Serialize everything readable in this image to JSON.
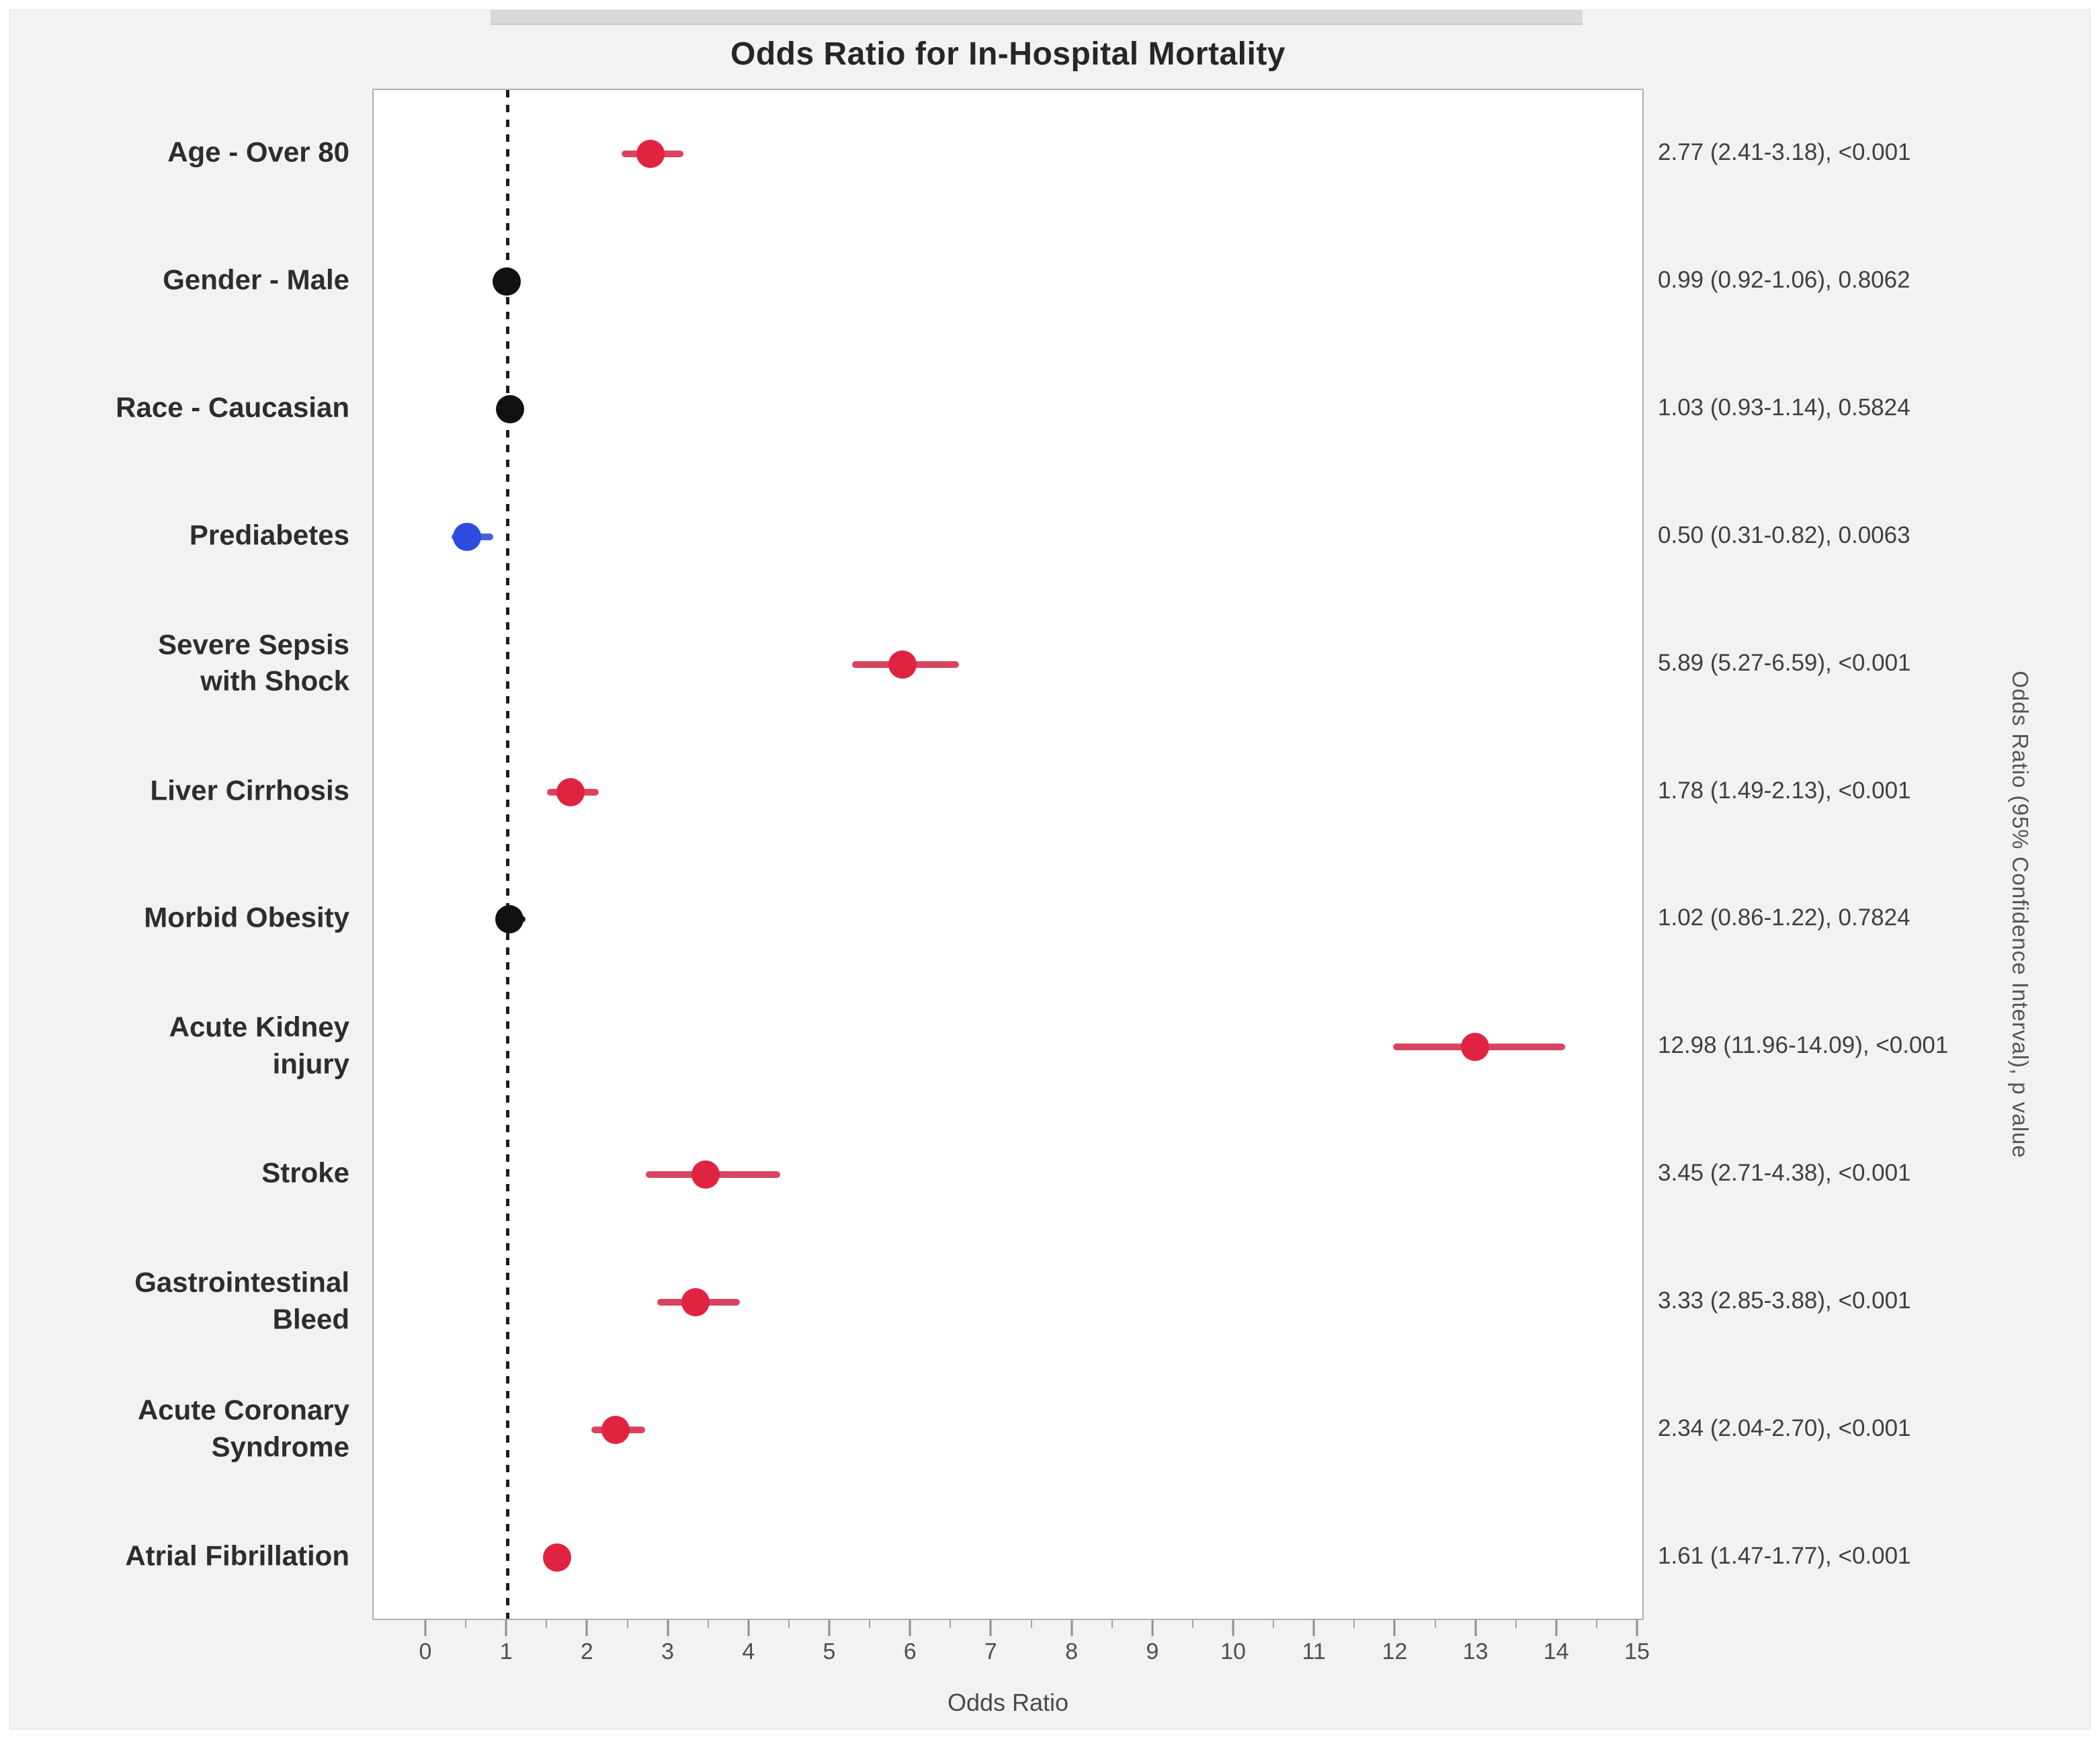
{
  "figure": {
    "title": "Odds Ratio for In-Hospital Mortality",
    "x_axis_label": "Odds Ratio",
    "right_axis_label": "Odds Ratio (95% Confidence Interval), p value"
  },
  "chart_data": {
    "type": "scatter",
    "subtype": "forest-plot",
    "title": "Odds Ratio for In-Hospital Mortality",
    "xlabel": "Odds Ratio",
    "right_label": "Odds Ratio (95% Confidence Interval), p value",
    "xlim": [
      0,
      15
    ],
    "x_major_ticks": [
      0,
      1,
      2,
      3,
      4,
      5,
      6,
      7,
      8,
      9,
      10,
      11,
      12,
      13,
      14,
      15
    ],
    "x_minor_tick_step": 0.5,
    "reference_line_x": 1,
    "grid": false,
    "legend": "none",
    "colors": {
      "red": "#e02340",
      "red_line": "#d8445e",
      "blue": "#2b4cdf",
      "blue_line": "#4661d8",
      "black": "#111111",
      "black_line": "#111111"
    },
    "rows": [
      {
        "label": "Age - Over 80",
        "or": 2.77,
        "ci_low": 2.41,
        "ci_high": 3.18,
        "p": "<0.001",
        "color": "red",
        "annotation": "2.77 (2.41-3.18), <0.001"
      },
      {
        "label": "Gender - Male",
        "or": 0.99,
        "ci_low": 0.92,
        "ci_high": 1.06,
        "p": "0.8062",
        "color": "black",
        "annotation": "0.99 (0.92-1.06), 0.8062"
      },
      {
        "label": "Race - Caucasian",
        "or": 1.03,
        "ci_low": 0.93,
        "ci_high": 1.14,
        "p": "0.5824",
        "color": "black",
        "annotation": "1.03 (0.93-1.14), 0.5824"
      },
      {
        "label": "Prediabetes",
        "or": 0.5,
        "ci_low": 0.31,
        "ci_high": 0.82,
        "p": "0.0063",
        "color": "blue",
        "annotation": "0.50 (0.31-0.82), 0.0063"
      },
      {
        "label": "Severe Sepsis\nwith Shock",
        "or": 5.89,
        "ci_low": 5.27,
        "ci_high": 6.59,
        "p": "<0.001",
        "color": "red",
        "annotation": "5.89 (5.27-6.59), <0.001"
      },
      {
        "label": "Liver Cirrhosis",
        "or": 1.78,
        "ci_low": 1.49,
        "ci_high": 2.13,
        "p": "<0.001",
        "color": "red",
        "annotation": "1.78 (1.49-2.13), <0.001"
      },
      {
        "label": "Morbid Obesity",
        "or": 1.02,
        "ci_low": 0.86,
        "ci_high": 1.22,
        "p": "0.7824",
        "color": "black",
        "annotation": "1.02 (0.86-1.22), 0.7824"
      },
      {
        "label": "Acute Kidney\ninjury",
        "or": 12.98,
        "ci_low": 11.96,
        "ci_high": 14.09,
        "p": "<0.001",
        "color": "red",
        "annotation": "12.98 (11.96-14.09), <0.001"
      },
      {
        "label": "Stroke",
        "or": 3.45,
        "ci_low": 2.71,
        "ci_high": 4.38,
        "p": "<0.001",
        "color": "red",
        "annotation": "3.45 (2.71-4.38), <0.001"
      },
      {
        "label": "Gastrointestinal\nBleed",
        "or": 3.33,
        "ci_low": 2.85,
        "ci_high": 3.88,
        "p": "<0.001",
        "color": "red",
        "annotation": "3.33 (2.85-3.88), <0.001"
      },
      {
        "label": "Acute Coronary\nSyndrome",
        "or": 2.34,
        "ci_low": 2.04,
        "ci_high": 2.7,
        "p": "<0.001",
        "color": "red",
        "annotation": "2.34 (2.04-2.70), <0.001"
      },
      {
        "label": "Atrial Fibrillation",
        "or": 1.61,
        "ci_low": 1.47,
        "ci_high": 1.77,
        "p": "<0.001",
        "color": "red",
        "annotation": "1.61 (1.47-1.77), <0.001"
      }
    ]
  }
}
